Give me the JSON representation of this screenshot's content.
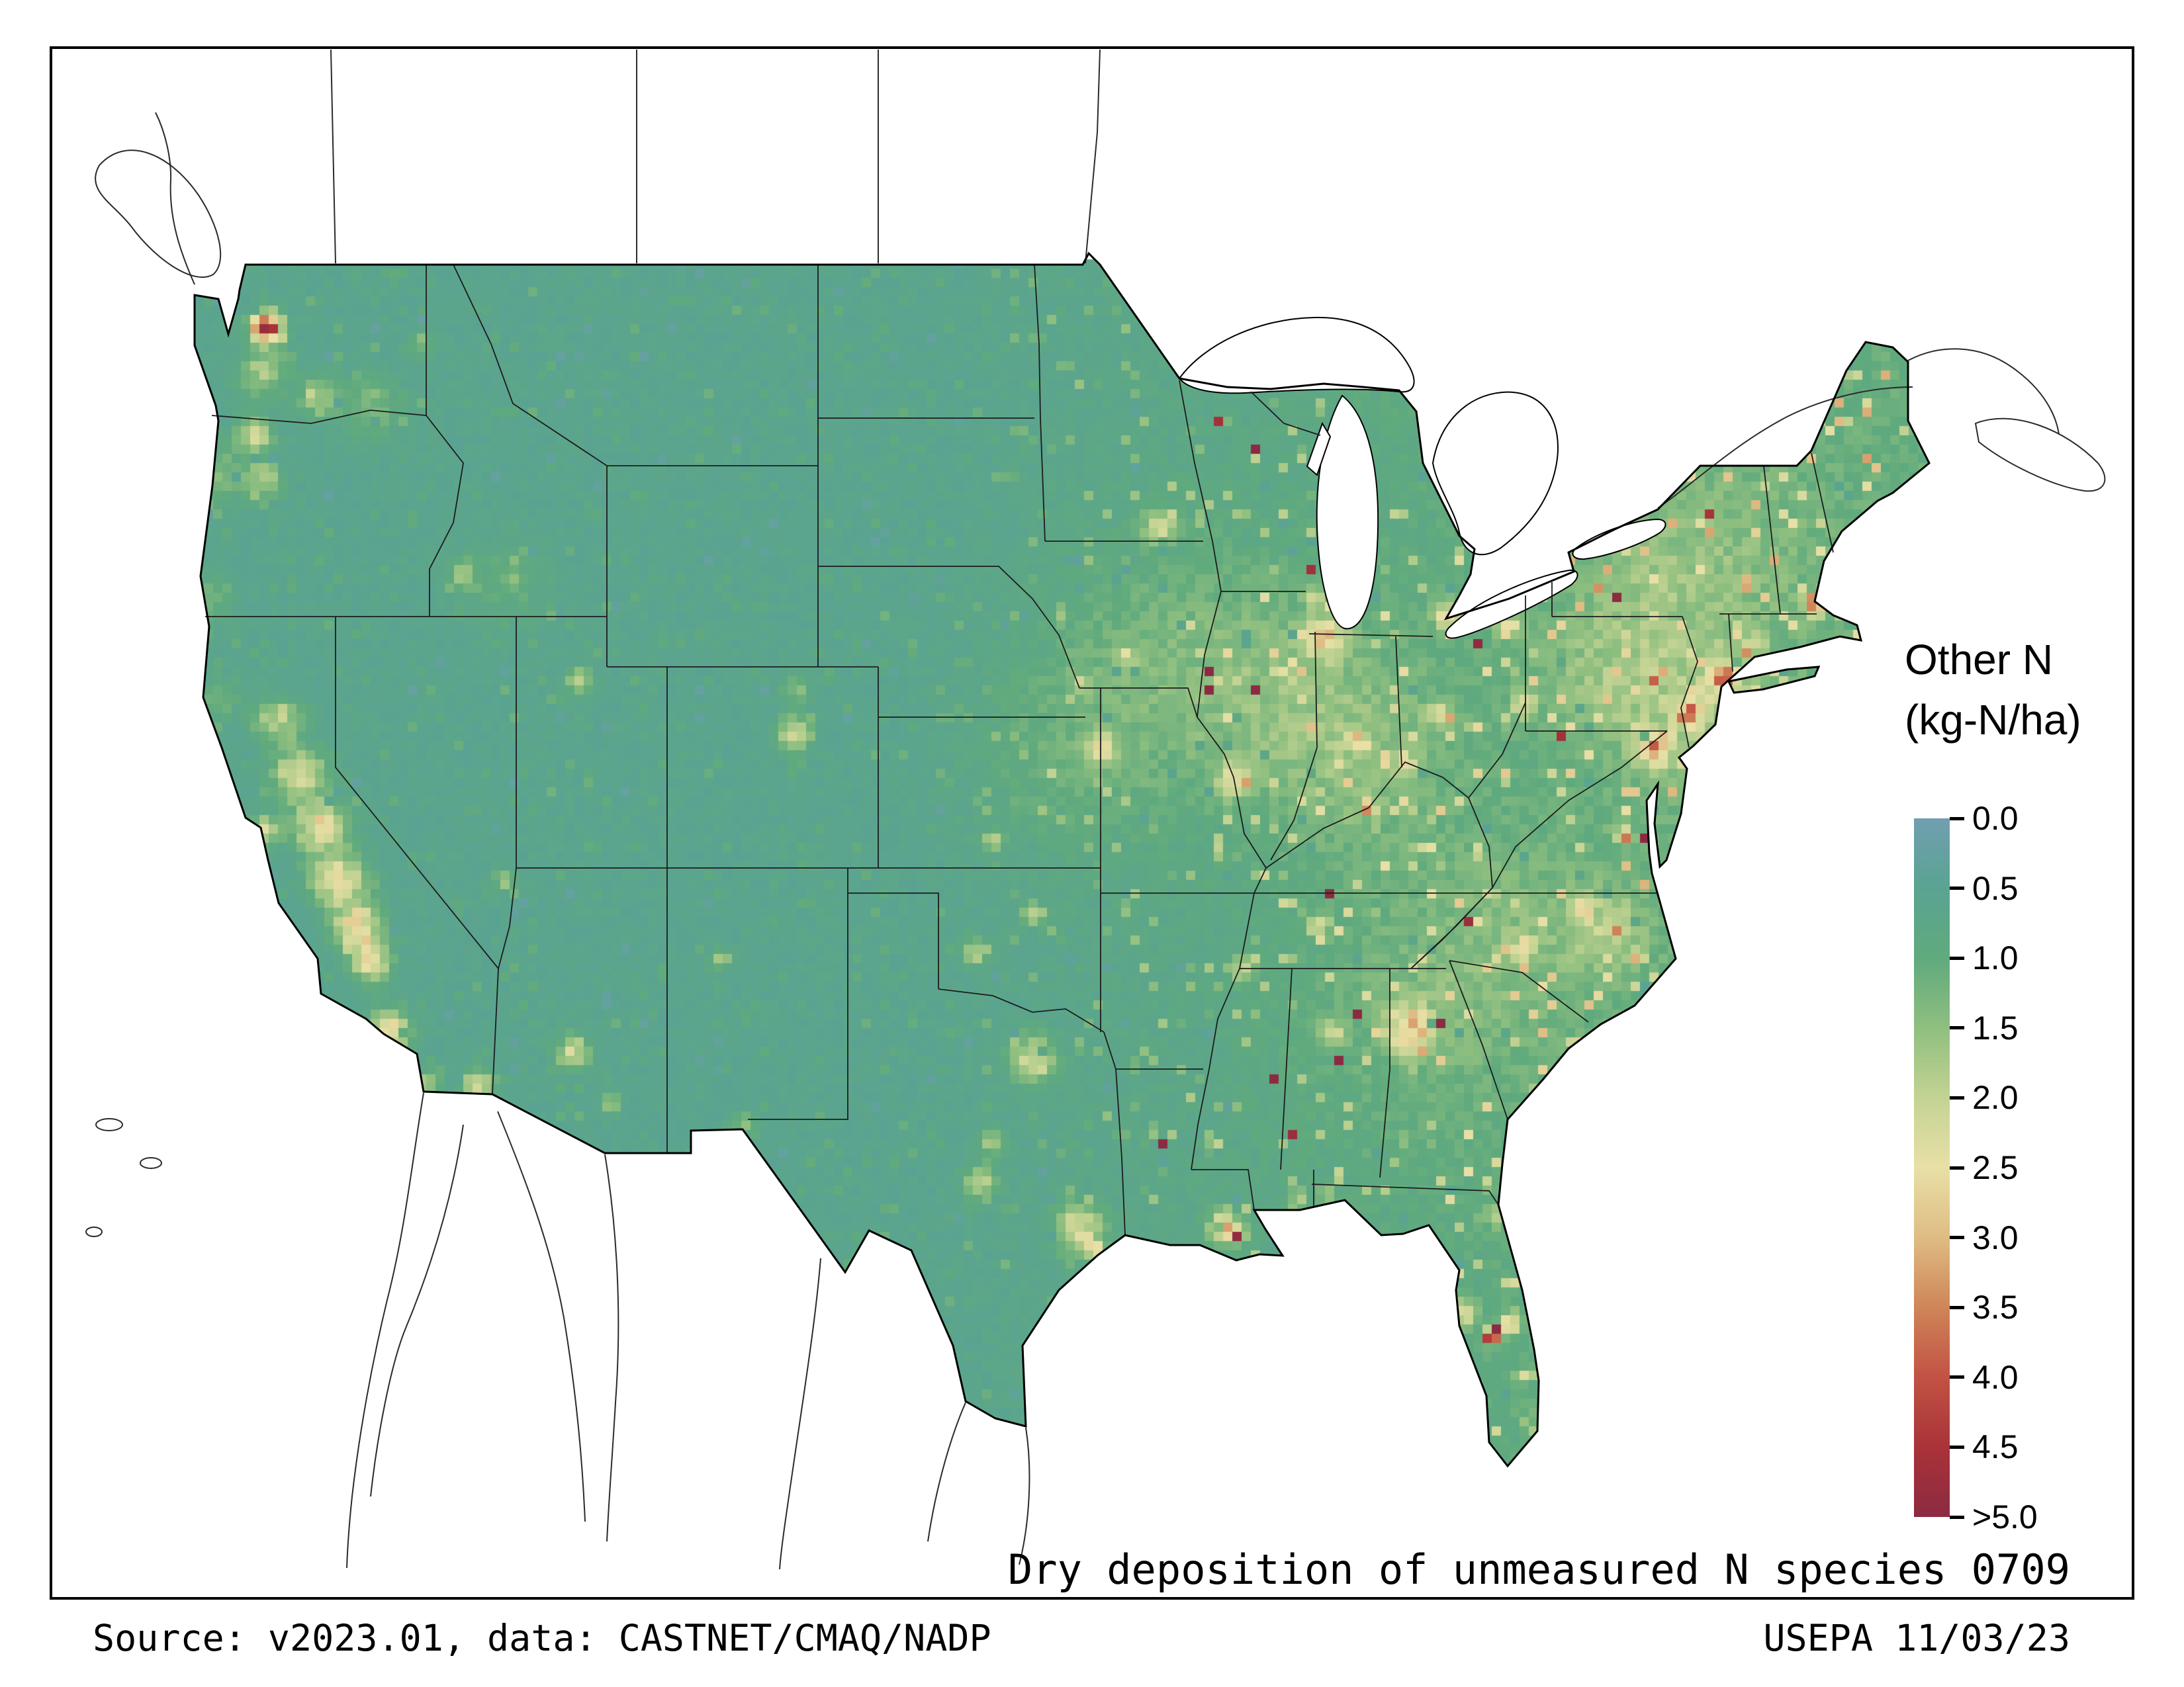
{
  "figure": {
    "title": "Dry deposition of unmeasured N species 0709",
    "source_line": "Source: v2023.01, data: CASTNET/CMAQ/NADP",
    "credit_line": "USEPA 11/03/23"
  },
  "legend": {
    "title_line1": "Other N",
    "title_line2": "(kg-N/ha)",
    "ticks": [
      "0.0",
      "0.5",
      "1.0",
      "1.5",
      "2.0",
      "2.5",
      "3.0",
      "3.5",
      "4.0",
      "4.5",
      ">5.0"
    ],
    "colors": [
      "#719fb0",
      "#5aa392",
      "#60aa7d",
      "#8fbf80",
      "#c3d393",
      "#e8e0a6",
      "#dfbc84",
      "#cf8558",
      "#c25244",
      "#a93338",
      "#8c2a42"
    ]
  },
  "chart_data": {
    "type": "heatmap",
    "title": "Dry deposition of unmeasured N species 0709",
    "legend_title": "Other N (kg-N/ha)",
    "units": "kg-N/ha",
    "region": "Contiguous United States",
    "colorbar": {
      "orientation": "vertical",
      "ticks": [
        "0.0",
        "0.5",
        "1.0",
        "1.5",
        "2.0",
        "2.5",
        "3.0",
        "3.5",
        "4.0",
        "4.5",
        ">5.0"
      ],
      "tick_values": [
        0.0,
        0.5,
        1.0,
        1.5,
        2.0,
        2.5,
        3.0,
        3.5,
        4.0,
        4.5,
        5.0
      ],
      "colors": [
        "#719fb0",
        "#5aa392",
        "#60aa7d",
        "#8fbf80",
        "#c3d393",
        "#e8e0a6",
        "#dfbc84",
        "#cf8558",
        "#c25244",
        "#a93338",
        "#8c2a42"
      ]
    },
    "value_range": [
      0,
      5
    ]
  }
}
